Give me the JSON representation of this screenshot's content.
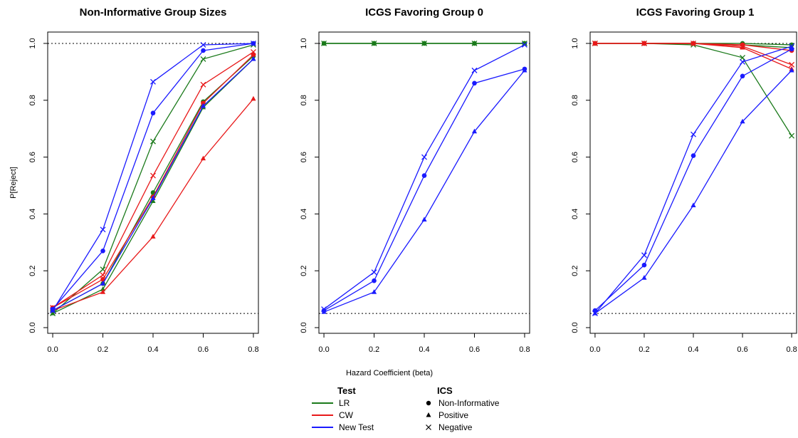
{
  "chart_data": [
    {
      "type": "line",
      "title": "Non-Informative Group Sizes",
      "xlabel": "Hazard Coefficient (beta)",
      "ylabel": "P[Reject]",
      "x": [
        0.0,
        0.2,
        0.4,
        0.6,
        0.8
      ],
      "xlim": [
        -0.02,
        0.82
      ],
      "ylim": [
        -0.02,
        1.04
      ],
      "xticks": [
        "0.0",
        "0.2",
        "0.4",
        "0.6",
        "0.8"
      ],
      "yticks": [
        "0.0",
        "0.2",
        "0.4",
        "0.6",
        "0.8",
        "1.0"
      ],
      "reference_lines": [
        1.0,
        0.05
      ],
      "series": [
        {
          "test": "LR",
          "ics": "Non-Informative",
          "values": [
            0.06,
            0.155,
            0.475,
            0.795,
            0.955
          ]
        },
        {
          "test": "LR",
          "ics": "Positive",
          "values": [
            0.05,
            0.135,
            0.445,
            0.775,
            0.945
          ]
        },
        {
          "test": "LR",
          "ics": "Negative",
          "values": [
            0.05,
            0.205,
            0.655,
            0.945,
            0.995
          ]
        },
        {
          "test": "CW",
          "ics": "Non-Informative",
          "values": [
            0.07,
            0.17,
            0.46,
            0.79,
            0.96
          ]
        },
        {
          "test": "CW",
          "ics": "Positive",
          "values": [
            0.06,
            0.125,
            0.32,
            0.595,
            0.805
          ]
        },
        {
          "test": "CW",
          "ics": "Negative",
          "values": [
            0.07,
            0.185,
            0.535,
            0.855,
            0.97
          ]
        },
        {
          "test": "New Test",
          "ics": "Non-Informative",
          "values": [
            0.065,
            0.27,
            0.755,
            0.975,
            1.0
          ]
        },
        {
          "test": "New Test",
          "ics": "Positive",
          "values": [
            0.06,
            0.155,
            0.455,
            0.78,
            0.945
          ]
        },
        {
          "test": "New Test",
          "ics": "Negative",
          "values": [
            0.06,
            0.345,
            0.865,
            0.995,
            1.0
          ]
        }
      ]
    },
    {
      "type": "line",
      "title": "ICGS Favoring Group 0",
      "xlabel": "Hazard Coefficient (beta)",
      "ylabel": "",
      "x": [
        0.0,
        0.2,
        0.4,
        0.6,
        0.8
      ],
      "xlim": [
        -0.02,
        0.82
      ],
      "ylim": [
        -0.02,
        1.04
      ],
      "xticks": [
        "0.0",
        "0.2",
        "0.4",
        "0.6",
        "0.8"
      ],
      "yticks": [
        "0.0",
        "0.2",
        "0.4",
        "0.6",
        "0.8",
        "1.0"
      ],
      "reference_lines": [
        1.0,
        0.05
      ],
      "series": [
        {
          "test": "LR",
          "ics": "Non-Informative",
          "values": [
            1.0,
            1.0,
            1.0,
            1.0,
            1.0
          ]
        },
        {
          "test": "LR",
          "ics": "Positive",
          "values": [
            1.0,
            1.0,
            1.0,
            1.0,
            1.0
          ]
        },
        {
          "test": "LR",
          "ics": "Negative",
          "values": [
            1.0,
            1.0,
            1.0,
            1.0,
            1.0
          ]
        },
        {
          "test": "New Test",
          "ics": "Non-Informative",
          "values": [
            0.06,
            0.165,
            0.535,
            0.86,
            0.91
          ]
        },
        {
          "test": "New Test",
          "ics": "Positive",
          "values": [
            0.055,
            0.125,
            0.38,
            0.69,
            0.905
          ]
        },
        {
          "test": "New Test",
          "ics": "Negative",
          "values": [
            0.065,
            0.195,
            0.6,
            0.905,
            0.995
          ]
        }
      ]
    },
    {
      "type": "line",
      "title": "ICGS Favoring Group 1",
      "xlabel": "Hazard Coefficient (beta)",
      "ylabel": "",
      "x": [
        0.0,
        0.2,
        0.4,
        0.6,
        0.8
      ],
      "xlim": [
        -0.02,
        0.82
      ],
      "ylim": [
        -0.02,
        1.04
      ],
      "xticks": [
        "0.0",
        "0.2",
        "0.4",
        "0.6",
        "0.8"
      ],
      "yticks": [
        "0.0",
        "0.2",
        "0.4",
        "0.6",
        "0.8",
        "1.0"
      ],
      "reference_lines": [
        1.0,
        0.05
      ],
      "series": [
        {
          "test": "LR",
          "ics": "Non-Informative",
          "values": [
            1.0,
            1.0,
            1.0,
            1.0,
            0.995
          ]
        },
        {
          "test": "LR",
          "ics": "Positive",
          "values": [
            1.0,
            1.0,
            1.0,
            0.995,
            0.985
          ]
        },
        {
          "test": "LR",
          "ics": "Negative",
          "values": [
            1.0,
            1.0,
            0.995,
            0.95,
            0.675
          ]
        },
        {
          "test": "CW",
          "ics": "Non-Informative",
          "values": [
            1.0,
            1.0,
            1.0,
            0.995,
            0.975
          ]
        },
        {
          "test": "CW",
          "ics": "Positive",
          "values": [
            1.0,
            1.0,
            1.0,
            0.985,
            0.91
          ]
        },
        {
          "test": "CW",
          "ics": "Negative",
          "values": [
            1.0,
            1.0,
            1.0,
            0.99,
            0.925
          ]
        },
        {
          "test": "New Test",
          "ics": "Non-Informative",
          "values": [
            0.06,
            0.22,
            0.605,
            0.885,
            0.98
          ]
        },
        {
          "test": "New Test",
          "ics": "Positive",
          "values": [
            0.05,
            0.175,
            0.43,
            0.725,
            0.905
          ]
        },
        {
          "test": "New Test",
          "ics": "Negative",
          "values": [
            0.05,
            0.255,
            0.68,
            0.935,
            0.99
          ]
        }
      ]
    }
  ],
  "x_axis_label": "Hazard Coefficient (beta)",
  "legend": {
    "test_title": "Test",
    "ics_title": "ICS",
    "tests": [
      {
        "label": "LR",
        "color": "#1b7a1b"
      },
      {
        "label": "CW",
        "color": "#e8191a"
      },
      {
        "label": "New Test",
        "color": "#1a1aff"
      }
    ],
    "ics": [
      {
        "label": "Non-Informative",
        "marker": "circle"
      },
      {
        "label": "Positive",
        "marker": "triangle"
      },
      {
        "label": "Negative",
        "marker": "cross"
      }
    ]
  },
  "colors": {
    "LR": "#1b7a1b",
    "CW": "#e8191a",
    "New Test": "#1a1aff"
  }
}
